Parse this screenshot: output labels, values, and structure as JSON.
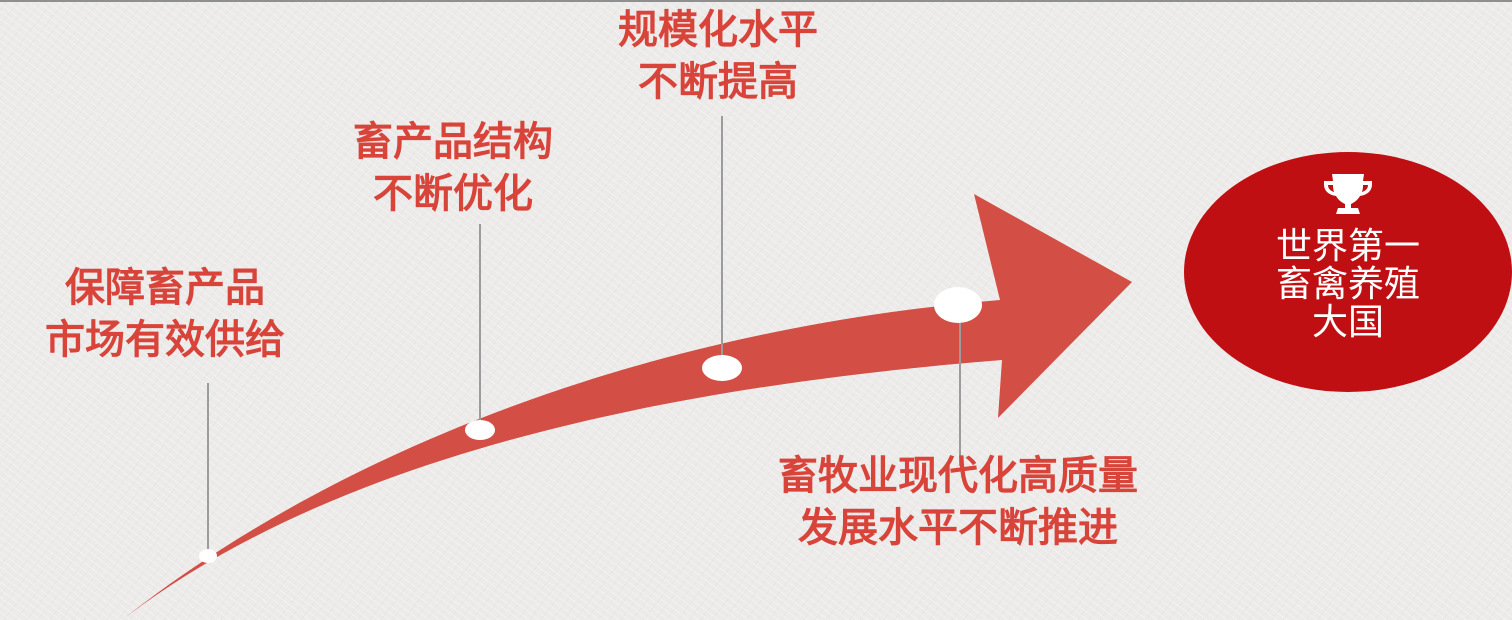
{
  "colors": {
    "arrow": "#d34e44",
    "badge": "#bf0f12",
    "label_text": "#d9443a",
    "connector": "#9c9c9c",
    "marker": "#ffffff",
    "background": "#ecebea"
  },
  "milestones": [
    {
      "lines": [
        "保障畜产品",
        "市场有效供给"
      ]
    },
    {
      "lines": [
        "畜产品结构",
        "不断优化"
      ]
    },
    {
      "lines": [
        "规模化水平",
        "不断提高"
      ]
    },
    {
      "lines": [
        "畜牧业现代化高质量",
        "发展水平不断推进"
      ]
    }
  ],
  "goal": {
    "icon": "trophy-icon",
    "lines": [
      "世界第一",
      "畜禽养殖",
      "大国"
    ]
  }
}
